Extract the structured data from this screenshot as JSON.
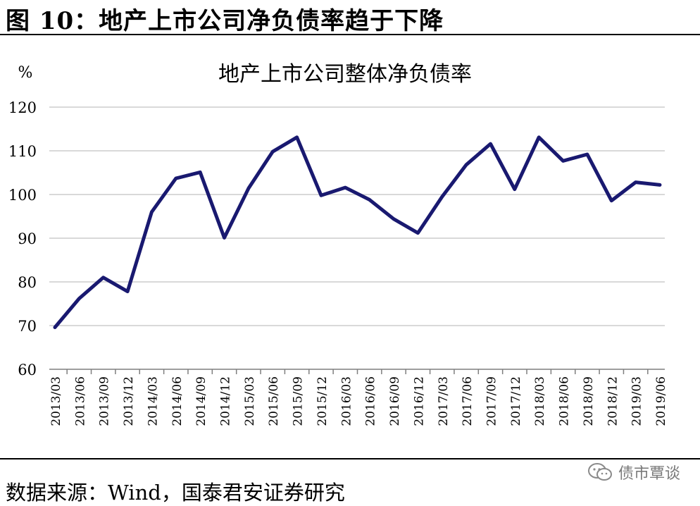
{
  "caption": "图 10：地产上市公司净负债率趋于下降",
  "source": "数据来源：Wind，国泰君安证券研究",
  "watermark": {
    "text": "债市覃谈",
    "icon": "wechat-icon"
  },
  "colors": {
    "line": "#191970",
    "grid": "#d9d9d9",
    "axis": "#7f7f7f",
    "text": "#000000"
  },
  "chart_data": {
    "type": "line",
    "title": "地产上市公司整体净负债率",
    "ylabel": "%",
    "xlabel": "",
    "ylim": [
      60,
      120
    ],
    "yticks": [
      60,
      70,
      80,
      90,
      100,
      110,
      120
    ],
    "grid": true,
    "legend": "none",
    "categories": [
      "2013/03",
      "2013/06",
      "2013/09",
      "2013/12",
      "2014/03",
      "2014/06",
      "2014/09",
      "2014/12",
      "2015/03",
      "2015/06",
      "2015/09",
      "2015/12",
      "2016/03",
      "2016/06",
      "2016/09",
      "2016/12",
      "2017/03",
      "2017/06",
      "2017/09",
      "2017/12",
      "2018/03",
      "2018/06",
      "2018/09",
      "2018/12",
      "2019/03",
      "2019/06"
    ],
    "series": [
      {
        "values": [
          69.6,
          76.2,
          81.0,
          77.8,
          96.0,
          103.7,
          105.1,
          90.1,
          101.4,
          109.8,
          113.1,
          99.8,
          101.6,
          98.8,
          94.4,
          91.2,
          99.5,
          106.8,
          111.6,
          101.2,
          113.1,
          107.7,
          109.2,
          98.6,
          102.8,
          102.2
        ]
      }
    ]
  }
}
